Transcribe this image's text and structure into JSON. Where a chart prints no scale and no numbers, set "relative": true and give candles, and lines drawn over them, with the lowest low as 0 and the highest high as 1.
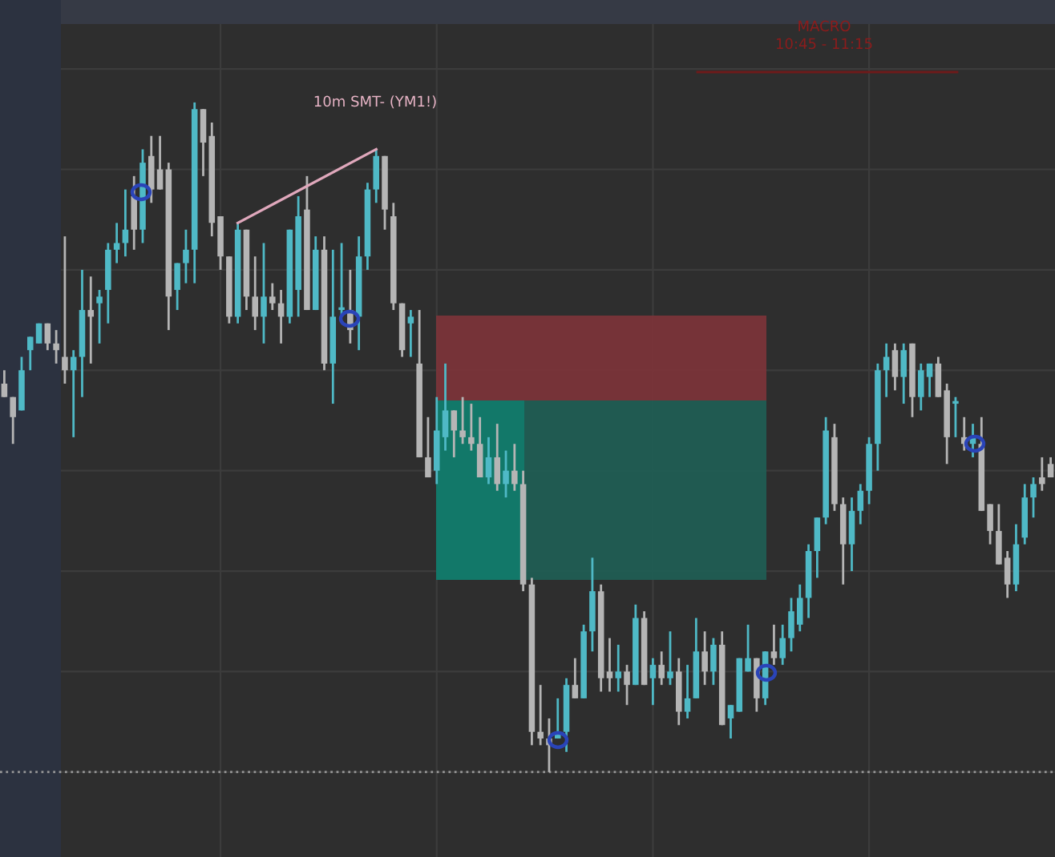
{
  "chart_data": {
    "type": "candlestick",
    "relative": true,
    "grid": true,
    "categories": [
      null,
      null,
      null,
      null,
      null,
      null,
      null,
      null,
      null,
      null,
      null,
      null,
      null,
      null,
      null,
      null,
      null,
      null,
      null,
      null,
      null,
      null,
      null,
      null,
      null,
      null,
      null,
      null,
      null,
      null,
      null,
      null,
      null,
      null,
      null,
      null,
      null,
      null,
      null,
      null,
      null,
      null,
      null,
      null,
      null,
      null,
      null,
      null,
      null,
      null,
      null,
      null,
      null,
      null,
      null,
      null,
      null,
      null,
      null,
      null,
      null,
      null,
      null,
      null,
      null,
      null,
      null,
      null,
      null,
      null,
      null,
      null,
      null,
      null,
      null,
      null,
      null,
      null,
      null,
      null,
      null,
      null,
      null,
      null,
      null,
      null,
      null,
      null,
      null,
      null,
      null,
      null,
      null,
      null,
      null,
      null,
      null,
      null,
      null,
      null,
      null,
      null,
      null,
      null,
      null,
      null,
      null,
      null,
      null,
      null,
      null,
      null,
      null,
      null,
      null,
      null,
      null,
      null,
      null,
      null,
      null,
      null
    ],
    "ohlc": [
      [
        0.58,
        0.6,
        0.56,
        0.56
      ],
      [
        0.56,
        0.56,
        0.49,
        0.53
      ],
      [
        0.54,
        0.62,
        0.54,
        0.6
      ],
      [
        0.63,
        0.65,
        0.6,
        0.65
      ],
      [
        0.64,
        0.67,
        0.64,
        0.67
      ],
      [
        0.67,
        0.67,
        0.63,
        0.64
      ],
      [
        0.64,
        0.66,
        0.61,
        0.63
      ],
      [
        0.62,
        0.8,
        0.58,
        0.6
      ],
      [
        0.6,
        0.63,
        0.5,
        0.62
      ],
      [
        0.62,
        0.75,
        0.56,
        0.69
      ],
      [
        0.69,
        0.74,
        0.61,
        0.68
      ],
      [
        0.7,
        0.72,
        0.64,
        0.71
      ],
      [
        0.72,
        0.79,
        0.67,
        0.78
      ],
      [
        0.78,
        0.82,
        0.76,
        0.79
      ],
      [
        0.79,
        0.87,
        0.77,
        0.81
      ],
      [
        0.86,
        0.89,
        0.78,
        0.81
      ],
      [
        0.81,
        0.93,
        0.79,
        0.91
      ],
      [
        0.92,
        0.95,
        0.85,
        0.87
      ],
      [
        0.9,
        0.95,
        0.87,
        0.87
      ],
      [
        0.9,
        0.91,
        0.66,
        0.71
      ],
      [
        0.72,
        0.76,
        0.69,
        0.76
      ],
      [
        0.76,
        0.81,
        0.73,
        0.78
      ],
      [
        0.78,
        1.0,
        0.73,
        0.99
      ],
      [
        0.99,
        0.99,
        0.89,
        0.94
      ],
      [
        0.95,
        0.97,
        0.8,
        0.82
      ],
      [
        0.83,
        0.83,
        0.75,
        0.77
      ],
      [
        0.77,
        0.77,
        0.67,
        0.68
      ],
      [
        0.68,
        0.82,
        0.67,
        0.81
      ],
      [
        0.81,
        0.81,
        0.69,
        0.71
      ],
      [
        0.71,
        0.77,
        0.66,
        0.68
      ],
      [
        0.68,
        0.79,
        0.64,
        0.71
      ],
      [
        0.71,
        0.73,
        0.69,
        0.7
      ],
      [
        0.7,
        0.72,
        0.64,
        0.68
      ],
      [
        0.68,
        0.81,
        0.67,
        0.81
      ],
      [
        0.72,
        0.86,
        0.68,
        0.83
      ],
      [
        0.84,
        0.89,
        0.69,
        0.69
      ],
      [
        0.69,
        0.8,
        0.69,
        0.78
      ],
      [
        0.78,
        0.8,
        0.6,
        0.61
      ],
      [
        0.61,
        0.78,
        0.55,
        0.68
      ],
      [
        0.69,
        0.79,
        0.68,
        0.69
      ],
      [
        0.69,
        0.75,
        0.64,
        0.66
      ],
      [
        0.68,
        0.8,
        0.63,
        0.77
      ],
      [
        0.77,
        0.88,
        0.75,
        0.87
      ],
      [
        0.87,
        0.93,
        0.85,
        0.92
      ],
      [
        0.92,
        0.92,
        0.81,
        0.84
      ],
      [
        0.83,
        0.85,
        0.69,
        0.7
      ],
      [
        0.7,
        0.7,
        0.62,
        0.63
      ],
      [
        0.67,
        0.69,
        0.62,
        0.68
      ],
      [
        0.61,
        0.69,
        0.47,
        0.47
      ],
      [
        0.47,
        0.53,
        0.44,
        0.44
      ],
      [
        0.45,
        0.56,
        0.43,
        0.51
      ],
      [
        0.5,
        0.61,
        0.48,
        0.54
      ],
      [
        0.54,
        0.54,
        0.47,
        0.51
      ],
      [
        0.51,
        0.56,
        0.49,
        0.5
      ],
      [
        0.5,
        0.55,
        0.48,
        0.49
      ],
      [
        0.49,
        0.53,
        0.44,
        0.44
      ],
      [
        0.44,
        0.5,
        0.43,
        0.47
      ],
      [
        0.47,
        0.52,
        0.42,
        0.43
      ],
      [
        0.43,
        0.48,
        0.41,
        0.45
      ],
      [
        0.45,
        0.49,
        0.42,
        0.43
      ],
      [
        0.43,
        0.45,
        0.27,
        0.28
      ],
      [
        0.28,
        0.29,
        0.04,
        0.06
      ],
      [
        0.06,
        0.13,
        0.04,
        0.05
      ],
      [
        0.05,
        0.08,
        0.0,
        0.04
      ],
      [
        0.05,
        0.11,
        0.05,
        0.06
      ],
      [
        0.06,
        0.14,
        0.03,
        0.13
      ],
      [
        0.13,
        0.17,
        0.11,
        0.11
      ],
      [
        0.11,
        0.22,
        0.11,
        0.21
      ],
      [
        0.21,
        0.32,
        0.18,
        0.27
      ],
      [
        0.27,
        0.28,
        0.12,
        0.14
      ],
      [
        0.15,
        0.2,
        0.12,
        0.14
      ],
      [
        0.14,
        0.19,
        0.12,
        0.15
      ],
      [
        0.15,
        0.16,
        0.1,
        0.13
      ],
      [
        0.13,
        0.25,
        0.13,
        0.23
      ],
      [
        0.23,
        0.24,
        0.13,
        0.13
      ],
      [
        0.14,
        0.17,
        0.1,
        0.16
      ],
      [
        0.16,
        0.18,
        0.13,
        0.14
      ],
      [
        0.14,
        0.21,
        0.13,
        0.15
      ],
      [
        0.15,
        0.17,
        0.07,
        0.09
      ],
      [
        0.09,
        0.16,
        0.08,
        0.11
      ],
      [
        0.11,
        0.23,
        0.11,
        0.18
      ],
      [
        0.18,
        0.21,
        0.13,
        0.15
      ],
      [
        0.15,
        0.2,
        0.13,
        0.19
      ],
      [
        0.19,
        0.21,
        0.07,
        0.07
      ],
      [
        0.08,
        0.1,
        0.05,
        0.1
      ],
      [
        0.09,
        0.17,
        0.09,
        0.17
      ],
      [
        0.15,
        0.22,
        0.15,
        0.17
      ],
      [
        0.17,
        0.17,
        0.09,
        0.11
      ],
      [
        0.11,
        0.18,
        0.1,
        0.18
      ],
      [
        0.18,
        0.22,
        0.16,
        0.17
      ],
      [
        0.17,
        0.22,
        0.16,
        0.2
      ],
      [
        0.2,
        0.26,
        0.18,
        0.24
      ],
      [
        0.22,
        0.28,
        0.21,
        0.26
      ],
      [
        0.26,
        0.34,
        0.23,
        0.33
      ],
      [
        0.33,
        0.38,
        0.29,
        0.38
      ],
      [
        0.38,
        0.53,
        0.37,
        0.51
      ],
      [
        0.5,
        0.52,
        0.39,
        0.4
      ],
      [
        0.4,
        0.41,
        0.28,
        0.34
      ],
      [
        0.34,
        0.41,
        0.3,
        0.39
      ],
      [
        0.39,
        0.43,
        0.37,
        0.42
      ],
      [
        0.42,
        0.5,
        0.4,
        0.49
      ],
      [
        0.49,
        0.61,
        0.45,
        0.6
      ],
      [
        0.6,
        0.64,
        0.56,
        0.62
      ],
      [
        0.63,
        0.64,
        0.57,
        0.59
      ],
      [
        0.59,
        0.64,
        0.55,
        0.63
      ],
      [
        0.64,
        0.64,
        0.53,
        0.56
      ],
      [
        0.56,
        0.61,
        0.54,
        0.6
      ],
      [
        0.59,
        0.61,
        0.56,
        0.61
      ],
      [
        0.61,
        0.62,
        0.56,
        0.56
      ],
      [
        0.57,
        0.58,
        0.46,
        0.5
      ],
      [
        0.55,
        0.56,
        0.5,
        0.55
      ],
      [
        0.5,
        0.53,
        0.48,
        0.49
      ],
      [
        0.49,
        0.52,
        0.47,
        0.5
      ],
      [
        0.49,
        0.53,
        0.39,
        0.39
      ],
      [
        0.4,
        0.4,
        0.34,
        0.36
      ],
      [
        0.36,
        0.4,
        0.31,
        0.31
      ],
      [
        0.32,
        0.33,
        0.26,
        0.28
      ],
      [
        0.28,
        0.37,
        0.27,
        0.34
      ],
      [
        0.35,
        0.43,
        0.34,
        0.41
      ],
      [
        0.41,
        0.44,
        0.38,
        0.43
      ],
      [
        0.44,
        0.47,
        0.42,
        0.43
      ],
      [
        0.46,
        0.47,
        0.44,
        0.44
      ]
    ],
    "series": [
      {
        "type": "line",
        "color": "#e0a8bc",
        "values": [
          null,
          null,
          null,
          null,
          null,
          null,
          null,
          null,
          null,
          null,
          null,
          null,
          null,
          null,
          null,
          null,
          null,
          null,
          null,
          null,
          null,
          null,
          null,
          null,
          null,
          null,
          null,
          0.82,
          null,
          null,
          null,
          null,
          null,
          null,
          null,
          null,
          null,
          null,
          null,
          null,
          null,
          null,
          null,
          0.93,
          null,
          null,
          null,
          null,
          null,
          null,
          null,
          null,
          null,
          null,
          null,
          null,
          null,
          null,
          null,
          null,
          null,
          null,
          null,
          null,
          null,
          null,
          null,
          null,
          null,
          null,
          null,
          null,
          null,
          null,
          null,
          null,
          null,
          null,
          null,
          null,
          null,
          null,
          null,
          null,
          null,
          null,
          null,
          null,
          null,
          null,
          null,
          null,
          null,
          null,
          null,
          null,
          null,
          null,
          null,
          null,
          null,
          null,
          null,
          null,
          null,
          null,
          null,
          null,
          null,
          null,
          null,
          null,
          null,
          null,
          null,
          null,
          null,
          null,
          null,
          null,
          null,
          null
        ]
      }
    ],
    "ref_lines": [
      {
        "axis": "y",
        "value": 0,
        "color": "#9a9a9a",
        "line_style": "dotted"
      }
    ],
    "annotations": [
      "10m SMT- (YM1!)",
      "MACRO",
      "10:45 - 11:15"
    ]
  }
}
